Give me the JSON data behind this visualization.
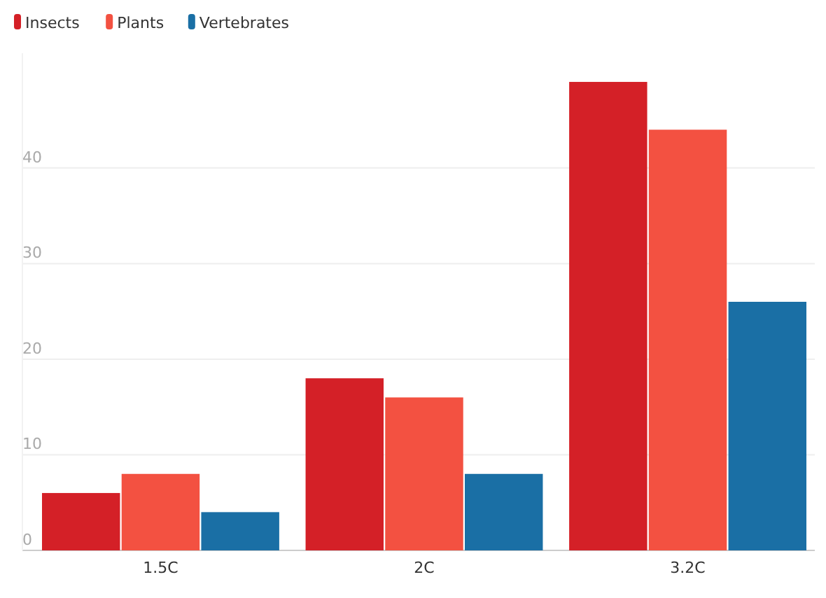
{
  "chart_data": {
    "type": "bar",
    "categories": [
      "1.5C",
      "2C",
      "3.2C"
    ],
    "series": [
      {
        "name": "Insects",
        "color": "#d42027",
        "values": [
          6,
          18,
          49
        ]
      },
      {
        "name": "Plants",
        "color": "#f35141",
        "values": [
          8,
          16,
          44
        ]
      },
      {
        "name": "Vertebrates",
        "color": "#1a6fa5",
        "values": [
          4,
          8,
          26
        ]
      }
    ],
    "ylim": [
      0,
      52
    ],
    "yticks": [
      0,
      10,
      20,
      30,
      40
    ],
    "grid": "y",
    "legend": "top left"
  }
}
